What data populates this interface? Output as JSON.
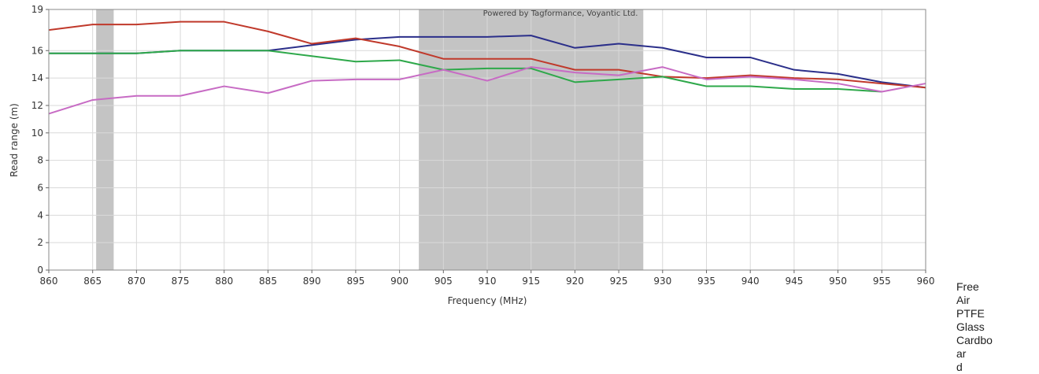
{
  "chart_data": {
    "type": "line",
    "watermark": "Powered by Tagformance, Voyantic Ltd.",
    "xlabel": "Frequency (MHz)",
    "ylabel": "Read range (m)",
    "xlim": [
      860,
      960
    ],
    "ylim": [
      0,
      19
    ],
    "x_ticks": [
      "860",
      "865",
      "870",
      "875",
      "880",
      "885",
      "890",
      "895",
      "900",
      "905",
      "910",
      "915",
      "920",
      "925",
      "930",
      "935",
      "940",
      "945",
      "950",
      "955",
      "960"
    ],
    "y_ticks": [
      "0",
      "2",
      "4",
      "6",
      "8",
      "10",
      "12",
      "14",
      "16",
      "19"
    ],
    "grid": true,
    "shaded_bands": [
      [
        865.4,
        867.4
      ],
      [
        902.2,
        927.8
      ]
    ],
    "series": [
      {
        "name": "Free Air",
        "color": "#2b2f8a",
        "x": [
          860,
          865,
          870,
          875,
          880,
          885,
          890,
          895,
          900,
          905,
          910,
          915,
          920,
          925,
          930,
          935,
          940,
          945,
          950,
          955,
          960
        ],
        "y": [
          15.8,
          15.8,
          15.8,
          16.0,
          16.0,
          16.0,
          16.4,
          16.8,
          17.0,
          17.0,
          17.0,
          17.1,
          16.2,
          16.5,
          16.2,
          15.5,
          15.5,
          14.6,
          14.3,
          13.7,
          13.3
        ]
      },
      {
        "name": "PTFE",
        "color": "#c0392b",
        "x": [
          860,
          865,
          870,
          875,
          880,
          885,
          890,
          895,
          900,
          905,
          910,
          915,
          920,
          925,
          930,
          935,
          940,
          945,
          950,
          955,
          960
        ],
        "y": [
          17.5,
          17.9,
          17.9,
          18.1,
          18.1,
          17.4,
          16.5,
          16.9,
          16.3,
          15.4,
          15.4,
          15.4,
          14.6,
          14.6,
          14.1,
          14.0,
          14.2,
          14.0,
          13.9,
          13.6,
          13.3
        ]
      },
      {
        "name": "Glass",
        "color": "#2ea84a",
        "x": [
          860,
          865,
          870,
          875,
          880,
          885,
          890,
          895,
          900,
          905,
          910,
          915,
          920,
          925,
          930,
          935,
          940,
          945,
          950,
          955
        ],
        "y": [
          15.8,
          15.8,
          15.8,
          16.0,
          16.0,
          16.0,
          15.6,
          15.2,
          15.3,
          14.6,
          14.7,
          14.7,
          13.7,
          13.9,
          14.1,
          13.4,
          13.4,
          13.2,
          13.2,
          13.0
        ]
      },
      {
        "name": "Cardboard",
        "color": "#c76bc4",
        "x": [
          860,
          865,
          870,
          875,
          880,
          885,
          890,
          895,
          900,
          905,
          910,
          915,
          920,
          925,
          930,
          935,
          940,
          945,
          950,
          955,
          960
        ],
        "y": [
          11.4,
          12.4,
          12.7,
          12.7,
          13.4,
          12.9,
          13.8,
          13.9,
          13.9,
          14.6,
          13.8,
          14.8,
          14.4,
          14.2,
          14.8,
          13.9,
          14.1,
          13.9,
          13.6,
          13.0,
          13.6
        ]
      }
    ]
  },
  "legend": {
    "line1": "Free",
    "line2": "Air",
    "line3": "PTFE",
    "line4": "Glass",
    "line5": "Cardboar",
    "line6": "d"
  }
}
